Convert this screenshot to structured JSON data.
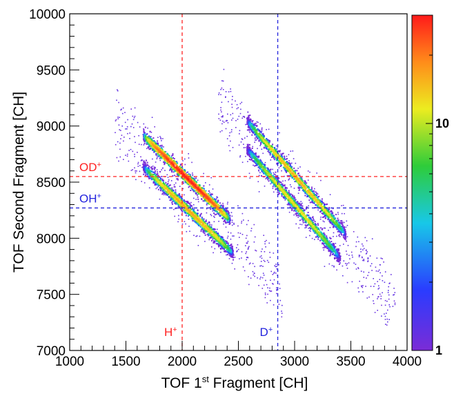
{
  "chart_data": {
    "type": "heatmap",
    "subtype": "2D scatter density (coincidence map)",
    "xlabel_main": "TOF 1",
    "xlabel_sup": "st",
    "xlabel_rest": " Fragment [CH]",
    "ylabel": "TOF Second Fragment [CH]",
    "xlim": [
      1000,
      4000
    ],
    "ylim": [
      7000,
      10000
    ],
    "x_ticks": [
      1000,
      1500,
      2000,
      2500,
      3000,
      3500,
      4000
    ],
    "y_ticks": [
      7000,
      7500,
      8000,
      8500,
      9000,
      9500,
      10000
    ],
    "x_tick_labels": [
      "1000",
      "1500",
      "2000",
      "2500",
      "3000",
      "3500",
      "4000"
    ],
    "y_tick_labels": [
      "7000",
      "7500",
      "8000",
      "8500",
      "9000",
      "9500",
      "10000"
    ],
    "grid": false,
    "color_scale": {
      "type": "log",
      "range": [
        1,
        30
      ],
      "labels": [
        "1",
        "10"
      ],
      "label_values": [
        1,
        10
      ],
      "colors": [
        "#7b2cd6",
        "#2a3cff",
        "#18c8e8",
        "#2ecc3a",
        "#ecec20",
        "#ff8c1a",
        "#ff1a1a"
      ]
    },
    "reference_lines": [
      {
        "axis": "x",
        "value": 2000,
        "label": "H",
        "label_sup": "+",
        "color": "#ff2222"
      },
      {
        "axis": "x",
        "value": 2850,
        "label": "D",
        "label_sup": "+",
        "color": "#2222dd"
      },
      {
        "axis": "y",
        "value": 8550,
        "label": "OD",
        "label_sup": "+",
        "color": "#ff2222"
      },
      {
        "axis": "y",
        "value": 8270,
        "label": "OH",
        "label_sup": "+",
        "color": "#2222dd"
      }
    ],
    "bands": [
      {
        "x_range": [
          1650,
          2420
        ],
        "y_at_start": 8920,
        "y_at_end": 8170,
        "peak_intensity": 30
      },
      {
        "x_range": [
          1650,
          2450
        ],
        "y_at_start": 8640,
        "y_at_end": 7870,
        "peak_intensity": 15
      },
      {
        "x_range": [
          2570,
          3450
        ],
        "y_at_start": 9050,
        "y_at_end": 8040,
        "peak_intensity": 14
      },
      {
        "x_range": [
          2570,
          3400
        ],
        "y_at_start": 8800,
        "y_at_end": 7830,
        "peak_intensity": 11
      }
    ]
  }
}
